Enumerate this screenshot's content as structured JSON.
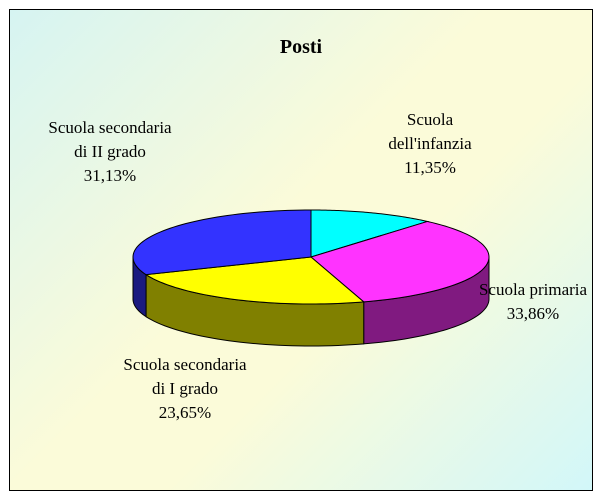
{
  "chart_data": {
    "type": "pie",
    "title": "Posti",
    "categories": [
      "Scuola dell'infanzia",
      "Scuola primaria",
      "Scuola secondaria di I grado",
      "Scuola secondaria di II grado"
    ],
    "values": [
      11.35,
      33.86,
      23.65,
      31.13
    ],
    "value_labels": [
      "11,35%",
      "33,86%",
      "23,65%",
      "31,13%"
    ],
    "colors": [
      "#00ffff",
      "#ff33ff",
      "#ffff00",
      "#3333ff"
    ]
  }
}
